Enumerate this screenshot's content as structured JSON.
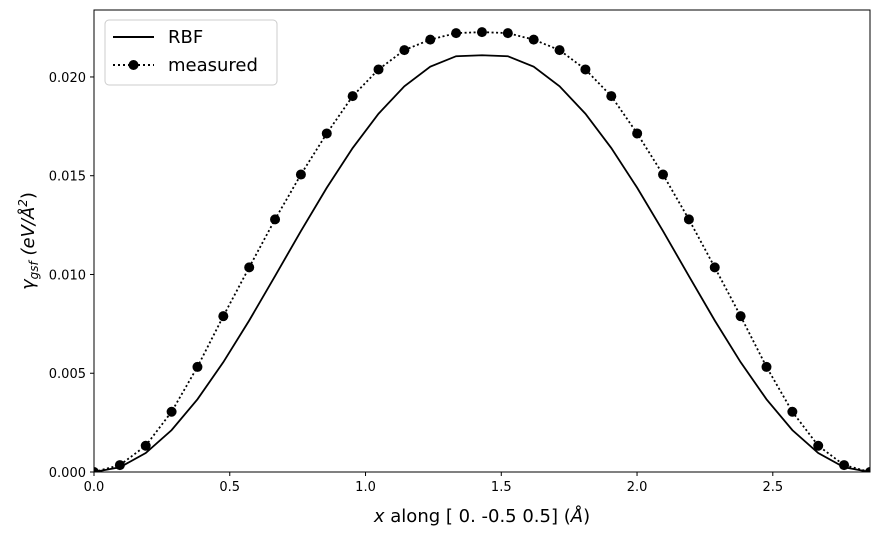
{
  "chart_data": {
    "type": "line",
    "xlabel_var": "x",
    "xlabel_rest": " along [ 0.  -0.5  0.5] (",
    "xlabel_unit": "Å",
    "xlabel_close": ")",
    "ylabel_sym": "γ",
    "ylabel_sub": "gsf",
    "ylabel_unit": " (eV/Å",
    "ylabel_exp": "2",
    "ylabel_close": ")",
    "xlim": [
      0,
      2.858
    ],
    "ylim": [
      0,
      0.02339
    ],
    "x_ticks": [
      0.0,
      0.5,
      1.0,
      1.5,
      2.0,
      2.5
    ],
    "x_tick_labels": [
      "0.0",
      "0.5",
      "1.0",
      "1.5",
      "2.0",
      "2.5"
    ],
    "y_ticks": [
      0.0,
      0.005,
      0.01,
      0.015,
      0.02
    ],
    "y_tick_labels": [
      "0.000",
      "0.005",
      "0.010",
      "0.015",
      "0.020"
    ],
    "legend": {
      "position": "upper-left",
      "entries": [
        {
          "label": "RBF",
          "style": "solid-line"
        },
        {
          "label": "measured",
          "style": "dotted-line-with-dots"
        }
      ]
    },
    "grid": false,
    "series": [
      {
        "name": "RBF",
        "style": "solid",
        "color": "#000000",
        "x": [
          0.0,
          0.0953,
          0.1905,
          0.2858,
          0.381,
          0.4763,
          0.5716,
          0.6668,
          0.7621,
          0.8573,
          0.9526,
          1.0479,
          1.1431,
          1.2384,
          1.3336,
          1.4289,
          1.5242,
          1.6194,
          1.7147,
          1.8099,
          1.9052,
          2.0005,
          2.0957,
          2.191,
          2.2862,
          2.3815,
          2.4768,
          2.572,
          2.6673,
          2.7625,
          2.8578
        ],
        "y": [
          0.0,
          0.00024,
          0.00096,
          0.00212,
          0.00368,
          0.00556,
          0.00767,
          0.00992,
          0.0122,
          0.01439,
          0.0164,
          0.01814,
          0.01953,
          0.02052,
          0.02105,
          0.0211,
          0.02105,
          0.02052,
          0.01953,
          0.01814,
          0.0164,
          0.01439,
          0.0122,
          0.00992,
          0.00767,
          0.00556,
          0.00368,
          0.00212,
          0.00096,
          0.00024,
          0.0
        ]
      },
      {
        "name": "measured",
        "style": "dotted-markers",
        "color": "#000000",
        "x": [
          0.0,
          0.0953,
          0.1905,
          0.2858,
          0.381,
          0.4763,
          0.5716,
          0.6668,
          0.7621,
          0.8573,
          0.9526,
          1.0479,
          1.1431,
          1.2384,
          1.3336,
          1.4289,
          1.5242,
          1.6194,
          1.7147,
          1.8099,
          1.9052,
          2.0005,
          2.0957,
          2.191,
          2.2862,
          2.3815,
          2.4768,
          2.572,
          2.6673,
          2.7625,
          2.8578
        ],
        "y": [
          0.0,
          0.00035,
          0.00133,
          0.00305,
          0.00532,
          0.00789,
          0.01036,
          0.01279,
          0.01506,
          0.01714,
          0.01903,
          0.02038,
          0.02136,
          0.02189,
          0.02222,
          0.02227,
          0.02222,
          0.02189,
          0.02136,
          0.02038,
          0.01903,
          0.01714,
          0.01506,
          0.01279,
          0.01036,
          0.00789,
          0.00532,
          0.00305,
          0.00133,
          0.00035,
          0.0
        ]
      }
    ]
  }
}
